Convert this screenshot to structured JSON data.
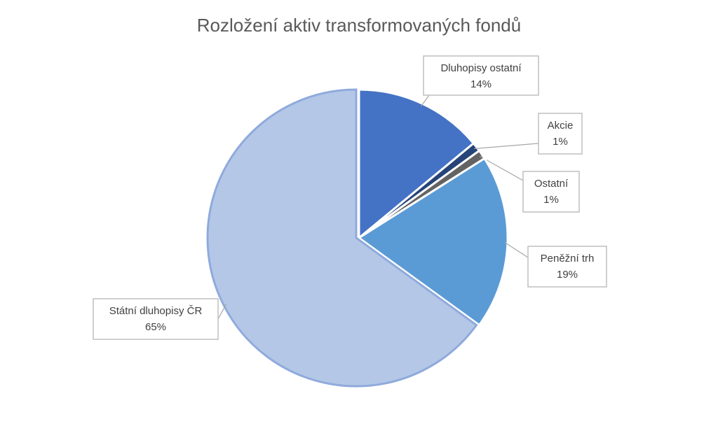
{
  "chart_data": {
    "type": "pie",
    "title": "Rozložení aktiv transformovaných fondů",
    "categories": [
      "Dluhopisy ostatní",
      "Akcie",
      "Ostatní",
      "Peněžní trh",
      "Státní dluhopisy ČR"
    ],
    "values": [
      14,
      1,
      1,
      19,
      65
    ],
    "value_labels": [
      "14%",
      "1%",
      "1%",
      "19%",
      "65%"
    ],
    "colors": [
      "#4472c4",
      "#264478",
      "#636363",
      "#5b9bd5",
      "#b4c7e7"
    ]
  }
}
